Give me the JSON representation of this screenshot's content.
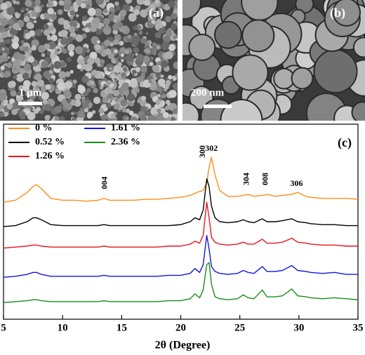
{
  "panels": [
    {
      "label": "(a)",
      "scale": "1 μm"
    },
    {
      "label": "(b)",
      "scale": "200 nm"
    }
  ],
  "chart_data": {
    "type": "line",
    "label": "(c)",
    "x_label": "2θ (Degree)",
    "xlim": [
      5,
      35
    ],
    "xticks": [
      5,
      10,
      15,
      20,
      25,
      30,
      35
    ],
    "ylim": [
      0,
      100
    ],
    "x": [
      5,
      6,
      7,
      7.5,
      7.8,
      8.2,
      9,
      10,
      11,
      12,
      13,
      13.5,
      14,
      15,
      16,
      17,
      18,
      19,
      20,
      20.8,
      21.2,
      21.6,
      21.9,
      22.2,
      22.4,
      22.6,
      22.9,
      23.3,
      24,
      24.8,
      25.3,
      25.7,
      26.2,
      26.9,
      27.3,
      28,
      28.6,
      29.4,
      29.9,
      30.6,
      31,
      32,
      33,
      34,
      35
    ],
    "series": [
      {
        "name": "0 %",
        "color": "#ff8c1a",
        "values": [
          60,
          61,
          65,
          68,
          69,
          67,
          62,
          61,
          61,
          60.5,
          61,
          62,
          61,
          61,
          61,
          61.5,
          61.5,
          62,
          62.5,
          63.5,
          64.5,
          65.5,
          66,
          70,
          78,
          83,
          74,
          66,
          63,
          63,
          63.5,
          64,
          63,
          63.5,
          64,
          63,
          63.5,
          64,
          65,
          63,
          62.5,
          62,
          62,
          62,
          61.5
        ]
      },
      {
        "name": "0.52 %",
        "color": "#000000",
        "values": [
          47.5,
          48,
          50,
          52,
          52,
          51,
          48.5,
          48,
          48,
          48,
          48,
          48.5,
          48,
          48,
          48,
          48,
          48,
          48,
          48.5,
          50,
          52,
          51,
          56,
          72,
          68,
          58,
          52,
          50,
          49.5,
          50,
          51,
          50,
          49.5,
          51.5,
          50,
          50,
          50.5,
          51.5,
          50,
          49.5,
          49,
          48.5,
          48.5,
          48,
          48
        ]
      },
      {
        "name": "1.26 %",
        "color": "#e8141e",
        "values": [
          36.5,
          37,
          37.5,
          38,
          38,
          37.5,
          37,
          37,
          37,
          37,
          37,
          37.5,
          37,
          37,
          37,
          37,
          37,
          37.5,
          37.5,
          38.5,
          40,
          39,
          43,
          60,
          52,
          42,
          39.5,
          38.5,
          38,
          38.5,
          39.5,
          38.5,
          38.5,
          41,
          39,
          39,
          39.5,
          41.5,
          39.5,
          39,
          38.5,
          38,
          38,
          37.5,
          37.5
        ]
      },
      {
        "name": "1.61 %",
        "color": "#1414e0",
        "values": [
          21.5,
          22,
          23,
          24,
          24,
          23,
          22,
          22,
          22,
          22,
          22,
          22.5,
          22,
          22,
          22,
          22,
          22,
          22.5,
          22.5,
          23.5,
          26,
          24,
          28,
          43,
          36,
          27,
          24.5,
          23.5,
          23,
          23.5,
          25,
          24,
          23.5,
          27,
          24.5,
          24.5,
          25,
          27.5,
          25,
          24.5,
          24,
          23.5,
          24,
          23,
          23
        ]
      },
      {
        "name": "2.36 %",
        "color": "#1a8c1a",
        "values": [
          8.5,
          9,
          9.5,
          10,
          10,
          9.5,
          9,
          9,
          9,
          9,
          9,
          9.5,
          9,
          9,
          9,
          9,
          9,
          9.5,
          9.5,
          10.5,
          13,
          11,
          15,
          28,
          29,
          18,
          11.5,
          10.5,
          10,
          10.5,
          12.5,
          11,
          10.5,
          15,
          11.5,
          11.5,
          12,
          15.5,
          12,
          11.5,
          11,
          10.5,
          11,
          10.5,
          10
        ]
      }
    ],
    "annotations": [
      {
        "text": "004",
        "x": 13.6
      },
      {
        "text": "300",
        "x": 21.9
      },
      {
        "text": "302",
        "x": 22.6
      },
      {
        "text": "304",
        "x": 25.6
      },
      {
        "text": "008",
        "x": 27.2
      },
      {
        "text": "306",
        "x": 29.8
      }
    ]
  }
}
